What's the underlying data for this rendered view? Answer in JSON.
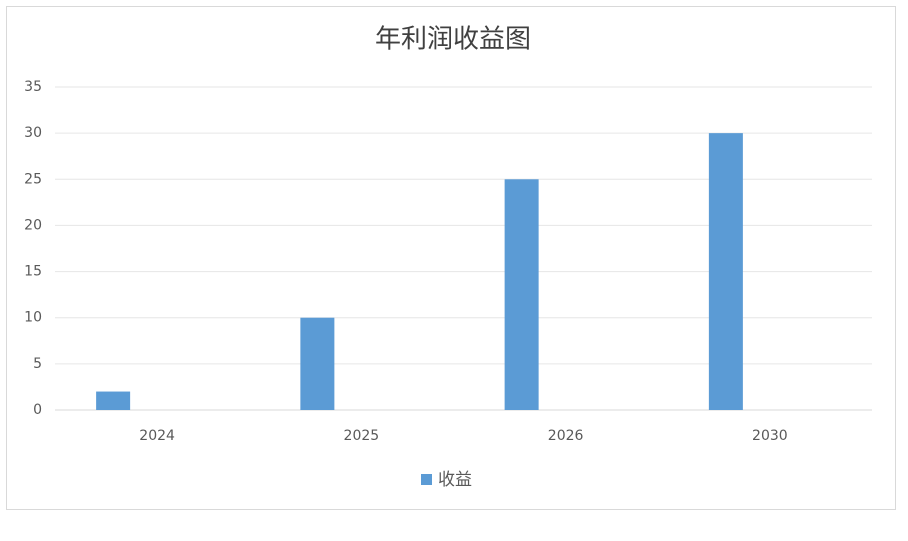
{
  "chart_data": {
    "type": "bar",
    "title": "年利润收益图",
    "categories": [
      "2024",
      "2025",
      "2026",
      "2030"
    ],
    "series": [
      {
        "name": "收益",
        "color": "#5b9bd5",
        "values": [
          2,
          10,
          25,
          30
        ]
      }
    ],
    "ylim": [
      0,
      35
    ],
    "yticks": [
      0,
      5,
      10,
      15,
      20,
      25,
      30,
      35
    ],
    "grid": true,
    "legend": "bottom"
  }
}
